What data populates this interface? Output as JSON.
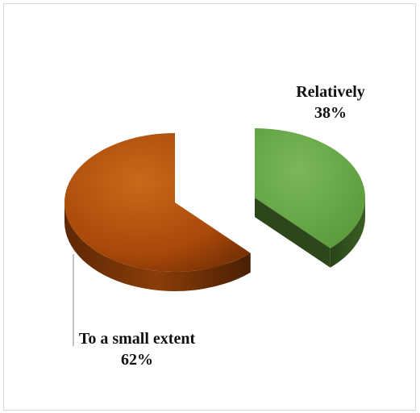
{
  "chart_data": {
    "type": "pie",
    "style": "3d-exploded",
    "slices": [
      {
        "label": "Relatively",
        "value": 38,
        "value_text": "38%",
        "color": "#6aa84f",
        "side_color": "#2f4f1f"
      },
      {
        "label": "To a small extent",
        "value": 62,
        "value_text": "62%",
        "color": "#b45309",
        "side_color": "#6b2e05"
      }
    ]
  }
}
